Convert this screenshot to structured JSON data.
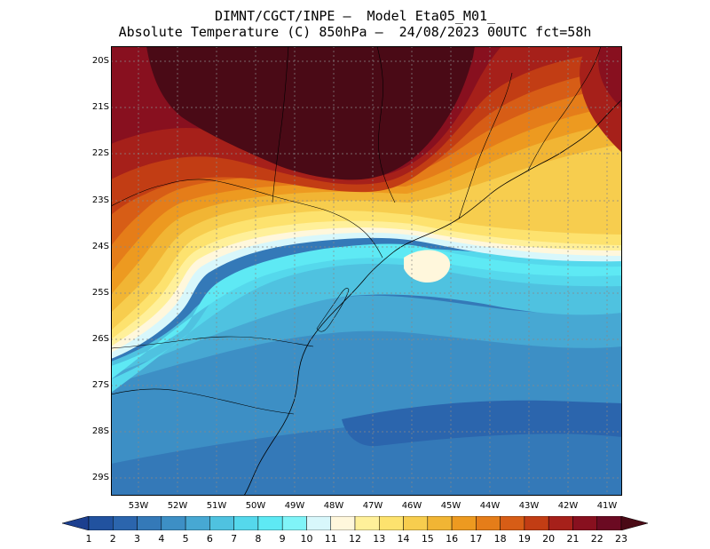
{
  "title": {
    "line1": "DIMNT/CGCT/INPE —  Model Eta05_M01_",
    "line2": "Absolute Temperature (C) 850hPa —  24/08/2023 00UTC fct=58h"
  },
  "map": {
    "lat_labels": [
      "20S",
      "21S",
      "22S",
      "23S",
      "24S",
      "25S",
      "26S",
      "27S",
      "28S",
      "29S"
    ],
    "lon_labels": [
      "53W",
      "52W",
      "51W",
      "50W",
      "49W",
      "48W",
      "47W",
      "46W",
      "45W",
      "44W",
      "43W",
      "42W",
      "41W"
    ]
  },
  "colorbar": {
    "labels": [
      "1",
      "2",
      "3",
      "4",
      "5",
      "6",
      "7",
      "8",
      "9",
      "10",
      "11",
      "12",
      "13",
      "14",
      "15",
      "16",
      "17",
      "18",
      "19",
      "20",
      "21",
      "22",
      "23"
    ],
    "colors": [
      "#1c3f8f",
      "#21529f",
      "#2b65ad",
      "#3479b8",
      "#3d8fc5",
      "#47a8d3",
      "#4fc2e0",
      "#55d8ec",
      "#5ee9f4",
      "#80f4f8",
      "#d8f7fb",
      "#fff7dc",
      "#fff09a",
      "#fde26e",
      "#f7cd4e",
      "#f1b534",
      "#ed9a20",
      "#e57d19",
      "#d75d16",
      "#c23d14",
      "#a6201a",
      "#88101f",
      "#6b0a22",
      "#4a0a16"
    ],
    "under_color": "#1c3f8f",
    "over_color": "#4a0a16"
  }
}
